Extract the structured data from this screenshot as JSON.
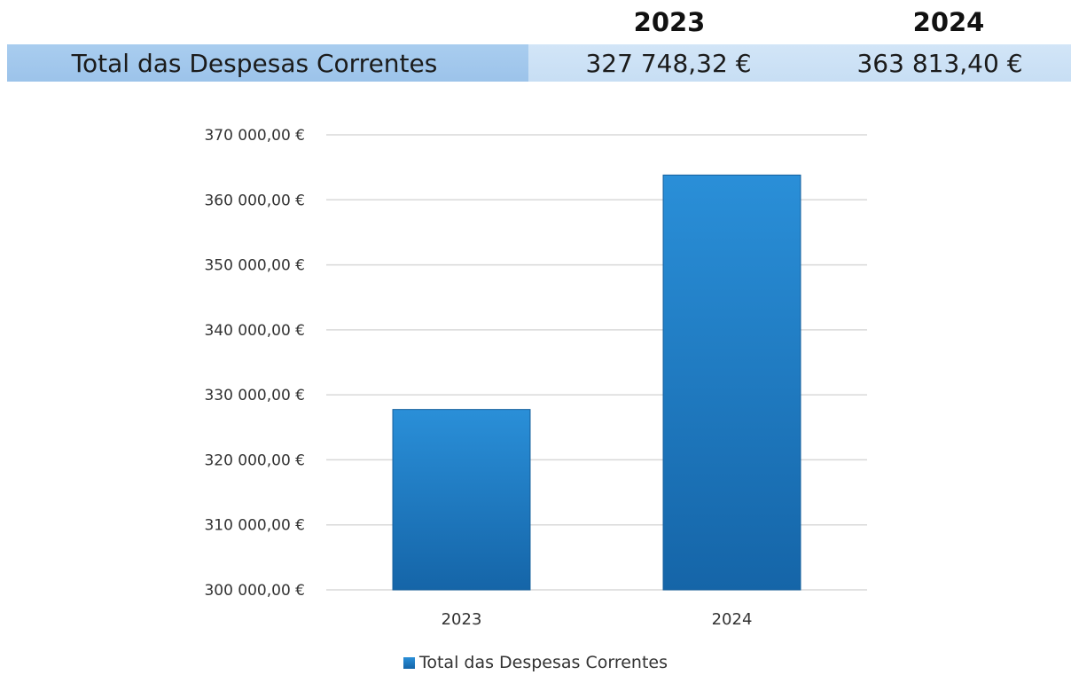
{
  "summary": {
    "label": "Total das Despesas Correntes",
    "years": [
      "2023",
      "2024"
    ],
    "values": [
      "327 748,32 €",
      "363 813,40 €"
    ]
  },
  "chart_data": {
    "type": "bar",
    "categories": [
      "2023",
      "2024"
    ],
    "series": [
      {
        "name": "Total das Despesas Correntes",
        "values": [
          327748.32,
          363813.4
        ]
      }
    ],
    "ylim": [
      300000,
      370000
    ],
    "yticks": [
      300000,
      310000,
      320000,
      330000,
      340000,
      350000,
      360000,
      370000
    ],
    "ytick_labels": [
      "300 000,00 €",
      "310 000,00 €",
      "320 000,00 €",
      "330 000,00 €",
      "340 000,00 €",
      "350 000,00 €",
      "360 000,00 €",
      "370 000,00 €"
    ],
    "grid": true,
    "legend": "bottom",
    "colors": {
      "bar_top": "#2a8fd8",
      "bar_bottom": "#1565a8",
      "grid": "#d9d9d9"
    }
  }
}
